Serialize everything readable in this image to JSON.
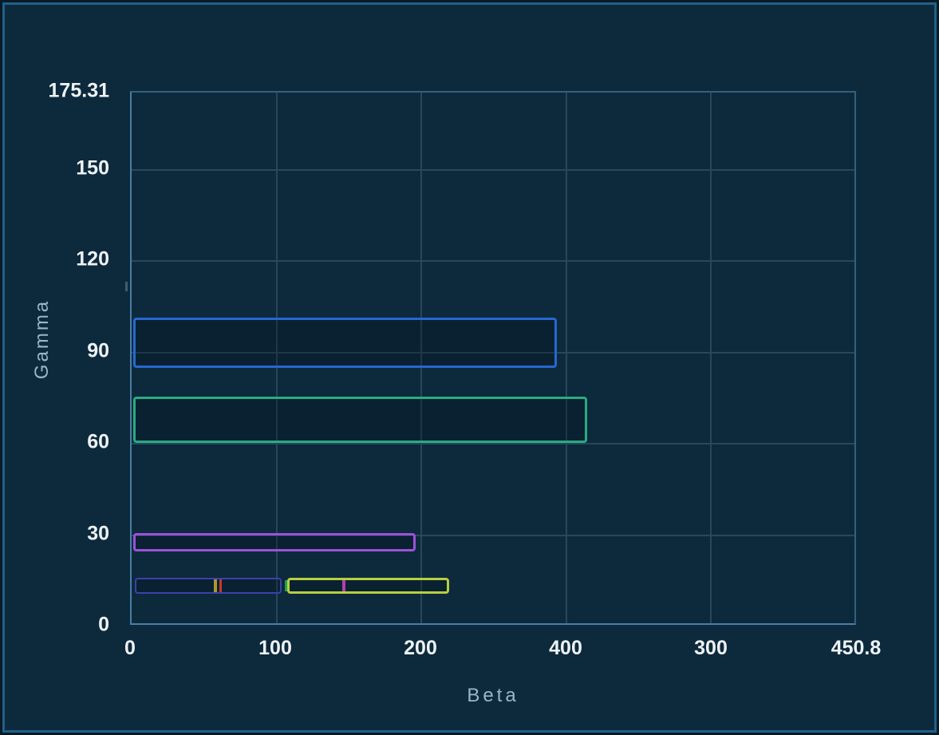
{
  "frame": {
    "background": "#0d2a3c",
    "border_color": "#1f6089",
    "outer_background": "#091a27"
  },
  "chart_data": {
    "type": "bar",
    "subtype": "horizontal-outlined-rectangles",
    "title": "",
    "xlabel": "Beta",
    "ylabel": "Gamma",
    "x_ticks": [
      "0",
      "100",
      "200",
      "400",
      "300",
      "450.8"
    ],
    "x_ticks_layout_note": "six ticks evenly spaced left-to-right in exactly this (non-monotonic) order",
    "y_ticks": [
      "0",
      "30",
      "60",
      "90",
      "120",
      "150",
      "175.31"
    ],
    "y_tick_values": [
      0,
      30,
      60,
      90,
      120,
      150,
      175.31
    ],
    "ylim": [
      0,
      175.31
    ],
    "grid": true,
    "legend": "none",
    "axis_colors": {
      "grid": "#28475d",
      "axis_left_bottom": "#4a7ea5",
      "axis_top_right": "#33607f",
      "tick_text": "#eef2f5",
      "axis_title_text": "#9cb4c9"
    },
    "bars": [
      {
        "name": "blue",
        "stroke": "#2767d2",
        "stroke_width": 3,
        "x0_frac": 0.002,
        "x1_frac": 0.586,
        "x_tick_index_extent": [
          0,
          2.93
        ],
        "y_low": 84.9,
        "y_high": 101.5,
        "markers": []
      },
      {
        "name": "green",
        "stroke": "#29ab80",
        "stroke_width": 3,
        "x0_frac": 0.002,
        "x1_frac": 0.627,
        "x_tick_index_extent": [
          0,
          3.14
        ],
        "y_low": 60.3,
        "y_high": 75.4,
        "markers": []
      },
      {
        "name": "purple",
        "stroke": "#9b51da",
        "stroke_width": 3,
        "x0_frac": 0.002,
        "x1_frac": 0.391,
        "x_tick_index_extent": [
          0,
          1.96
        ],
        "y_low": 24.6,
        "y_high": 30.6,
        "markers": []
      },
      {
        "name": "indigo",
        "stroke": "#3c40ac",
        "stroke_width": 2,
        "x0_frac": 0.004,
        "x1_frac": 0.207,
        "x_tick_index_extent": [
          0.02,
          1.03
        ],
        "y_low": 10.7,
        "y_high": 16.0,
        "markers": [
          {
            "name": "yellow",
            "x_frac": 0.113,
            "color": "#a89a2f",
            "width": 4
          },
          {
            "name": "red",
            "x_frac": 0.121,
            "color": "#c9362c",
            "width": 3
          }
        ]
      },
      {
        "name": "yellowgreen",
        "stroke": "#b7cf3f",
        "stroke_width": 3,
        "x0_frac": 0.214,
        "x1_frac": 0.437,
        "x_tick_index_extent": [
          1.07,
          2.19
        ],
        "y_low": 10.7,
        "y_high": 16.0,
        "markers": [
          {
            "name": "green",
            "x_frac": 0.211,
            "color": "#22a14c",
            "width": 3
          },
          {
            "name": "magenta",
            "x_frac": 0.29,
            "color": "#b23fb0",
            "width": 4
          }
        ]
      }
    ],
    "decorations": {
      "y_axis_notch": {
        "gamma": 111,
        "color": "#3b5d75"
      }
    }
  }
}
